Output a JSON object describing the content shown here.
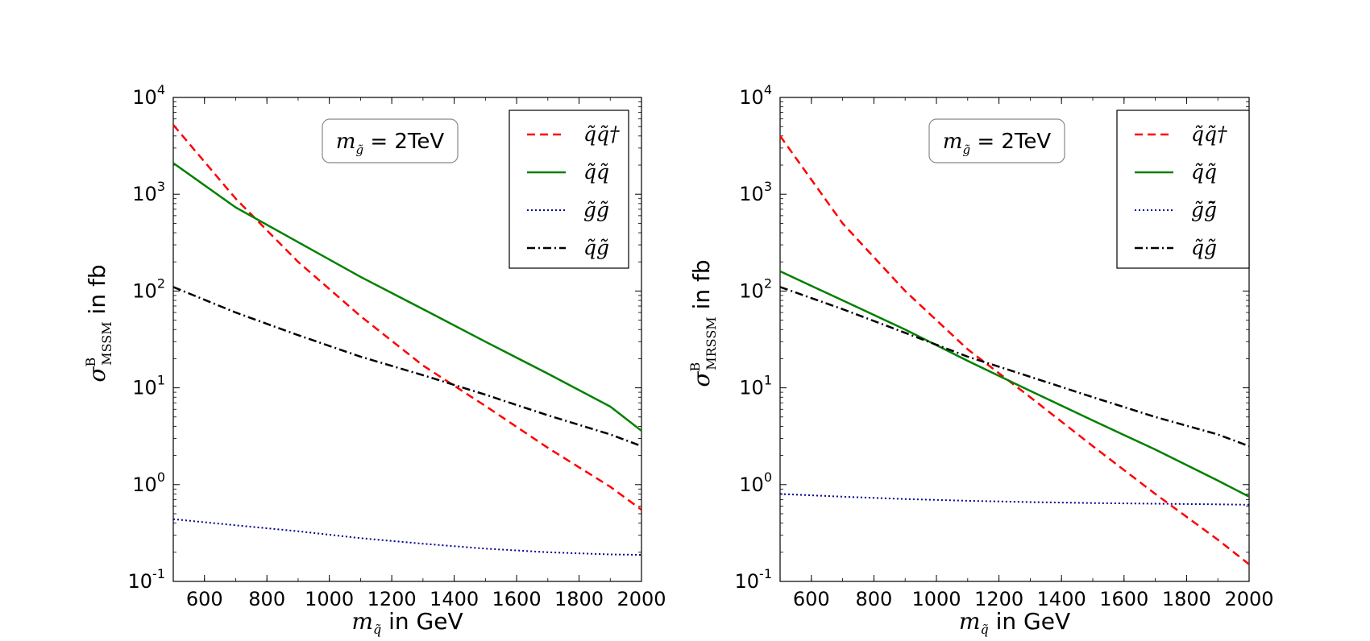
{
  "chart_data": [
    {
      "type": "line",
      "panel": "left",
      "ylabel": "σ^B_MSSM in fb",
      "ylabel_main": "σ",
      "ylabel_sup": "B",
      "ylabel_sub": "MSSM",
      "ylabel_suffix": " in fb",
      "xlabel_main": "m",
      "xlabel_sub": "q̃",
      "xlabel_suffix": " in GeV",
      "xlim": [
        500,
        2000
      ],
      "ylim": [
        0.1,
        10000
      ],
      "yscale": "log",
      "x_ticks": [
        "600",
        "800",
        "1000",
        "1200",
        "1400",
        "1600",
        "1800",
        "2000"
      ],
      "y_ticks": [
        {
          "base": "10",
          "exp": "-1"
        },
        {
          "base": "10",
          "exp": "0"
        },
        {
          "base": "10",
          "exp": "1"
        },
        {
          "base": "10",
          "exp": "2"
        },
        {
          "base": "10",
          "exp": "3"
        },
        {
          "base": "10",
          "exp": "4"
        }
      ],
      "annotation": {
        "main": "m",
        "sub": "g̃",
        "eq": " = ",
        "val": "2TeV"
      },
      "legend_position": "top-right",
      "series": [
        {
          "name": "q̃q̃†",
          "color": "#ff0000",
          "style": "dashed",
          "x": [
            500,
            700,
            900,
            1100,
            1300,
            1500,
            1700,
            1900,
            2000
          ],
          "values": [
            5200,
            900,
            200,
            55,
            17,
            6.5,
            2.4,
            0.95,
            0.55
          ]
        },
        {
          "name": "q̃q̃",
          "color": "#008000",
          "style": "solid",
          "x": [
            500,
            700,
            900,
            1100,
            1300,
            1500,
            1700,
            1900,
            2000
          ],
          "values": [
            2100,
            730,
            320,
            140,
            65,
            30,
            14,
            6.4,
            3.6
          ]
        },
        {
          "name": "g̃g̃",
          "color": "#00008b",
          "style": "dotted",
          "x": [
            500,
            700,
            900,
            1100,
            1300,
            1500,
            1700,
            1900,
            2000
          ],
          "values": [
            0.44,
            0.38,
            0.33,
            0.28,
            0.245,
            0.218,
            0.2,
            0.19,
            0.188
          ]
        },
        {
          "name": "q̃g̃",
          "color": "#000000",
          "style": "dashdot",
          "x": [
            500,
            700,
            900,
            1100,
            1300,
            1500,
            1700,
            1900,
            2000
          ],
          "values": [
            110,
            60,
            35,
            21,
            13.5,
            8.5,
            5.2,
            3.3,
            2.5
          ]
        }
      ]
    },
    {
      "type": "line",
      "panel": "right",
      "ylabel": "σ^B_MRSSM in fb",
      "ylabel_main": "σ",
      "ylabel_sup": "B",
      "ylabel_sub": "MRSSM",
      "ylabel_suffix": " in fb",
      "xlabel_main": "m",
      "xlabel_sub": "q̃",
      "xlabel_suffix": " in GeV",
      "xlim": [
        500,
        2000
      ],
      "ylim": [
        0.1,
        10000
      ],
      "yscale": "log",
      "x_ticks": [
        "600",
        "800",
        "1000",
        "1200",
        "1400",
        "1600",
        "1800",
        "2000"
      ],
      "y_ticks": [
        {
          "base": "10",
          "exp": "-1"
        },
        {
          "base": "10",
          "exp": "0"
        },
        {
          "base": "10",
          "exp": "1"
        },
        {
          "base": "10",
          "exp": "2"
        },
        {
          "base": "10",
          "exp": "3"
        },
        {
          "base": "10",
          "exp": "4"
        }
      ],
      "annotation": {
        "main": "m",
        "sub": "g̃",
        "eq": " = ",
        "val": "2TeV"
      },
      "legend_position": "top-right",
      "series": [
        {
          "name": "q̃q̃†",
          "color": "#ff0000",
          "style": "dashed",
          "x": [
            500,
            700,
            900,
            1100,
            1300,
            1500,
            1700,
            1900,
            2000
          ],
          "values": [
            4000,
            500,
            100,
            25,
            8,
            2.5,
            0.8,
            0.27,
            0.15
          ]
        },
        {
          "name": "q̃q̃",
          "color": "#008000",
          "style": "solid",
          "x": [
            500,
            700,
            900,
            1100,
            1300,
            1500,
            1700,
            1900,
            2000
          ],
          "values": [
            160,
            80,
            40,
            19,
            9.3,
            4.6,
            2.3,
            1.1,
            0.75
          ]
        },
        {
          "name": "g̃g̃̄",
          "color": "#00008b",
          "style": "dotted",
          "x": [
            500,
            700,
            900,
            1100,
            1300,
            1500,
            1700,
            1900,
            2000
          ],
          "values": [
            0.8,
            0.75,
            0.71,
            0.68,
            0.66,
            0.645,
            0.635,
            0.625,
            0.62
          ]
        },
        {
          "name": "q̃g̃",
          "color": "#000000",
          "style": "dashdot",
          "x": [
            500,
            700,
            900,
            1100,
            1300,
            1500,
            1700,
            1900,
            2000
          ],
          "values": [
            110,
            65,
            37,
            21,
            13,
            8,
            5,
            3.3,
            2.5
          ]
        }
      ]
    }
  ]
}
